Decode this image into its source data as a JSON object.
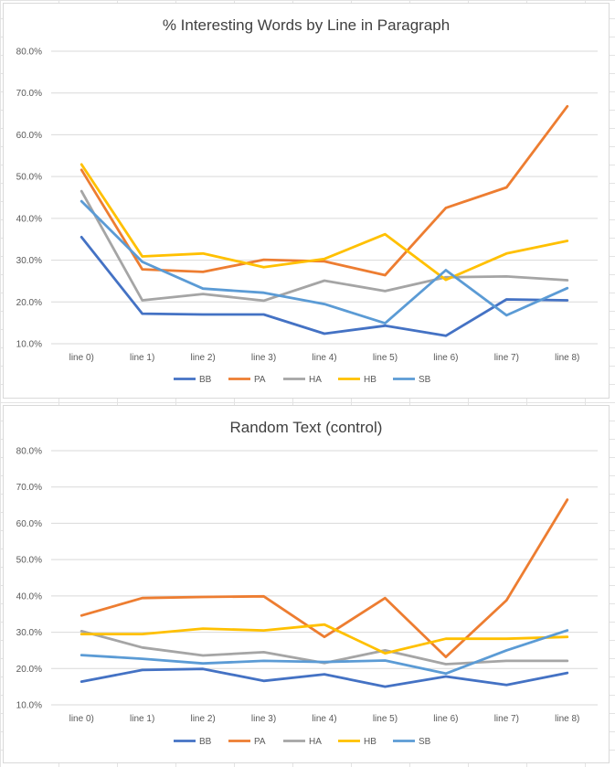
{
  "chart_data": [
    {
      "type": "line",
      "title": "% Interesting Words by Line in Paragraph",
      "xlabel": "",
      "ylabel": "",
      "ylim": [
        0.1,
        0.8
      ],
      "y_ticks": [
        "10.0%",
        "20.0%",
        "30.0%",
        "40.0%",
        "50.0%",
        "60.0%",
        "70.0%",
        "80.0%"
      ],
      "categories": [
        "line 0)",
        "line 1)",
        "line 2)",
        "line 3)",
        "line 4)",
        "line 5)",
        "line 6)",
        "line 7)",
        "line 8)"
      ],
      "grid": "horizontal",
      "legend_position": "bottom",
      "series": [
        {
          "name": "BB",
          "color": "#4472c4",
          "values": [
            0.355,
            0.172,
            0.17,
            0.17,
            0.124,
            0.143,
            0.119,
            0.206,
            0.204
          ]
        },
        {
          "name": "PA",
          "color": "#ed7d31",
          "values": [
            0.516,
            0.278,
            0.272,
            0.301,
            0.297,
            0.264,
            0.425,
            0.474,
            0.668
          ]
        },
        {
          "name": "HA",
          "color": "#a5a5a5",
          "values": [
            0.465,
            0.204,
            0.219,
            0.203,
            0.251,
            0.226,
            0.259,
            0.261,
            0.252
          ]
        },
        {
          "name": "HB",
          "color": "#ffc000",
          "values": [
            0.529,
            0.309,
            0.316,
            0.283,
            0.303,
            0.362,
            0.253,
            0.316,
            0.346
          ]
        },
        {
          "name": "SB",
          "color": "#5b9bd5",
          "values": [
            0.441,
            0.296,
            0.232,
            0.222,
            0.195,
            0.149,
            0.276,
            0.168,
            0.233
          ]
        }
      ]
    },
    {
      "type": "line",
      "title": "Random Text (control)",
      "xlabel": "",
      "ylabel": "",
      "ylim": [
        0.1,
        0.8
      ],
      "y_ticks": [
        "10.0%",
        "20.0%",
        "30.0%",
        "40.0%",
        "50.0%",
        "60.0%",
        "70.0%",
        "80.0%"
      ],
      "categories": [
        "line 0)",
        "line 1)",
        "line 2)",
        "line 3)",
        "line 4)",
        "line 5)",
        "line 6)",
        "line 7)",
        "line 8)"
      ],
      "grid": "horizontal",
      "legend_position": "bottom",
      "series": [
        {
          "name": "BB",
          "color": "#4472c4",
          "values": [
            0.164,
            0.196,
            0.199,
            0.166,
            0.184,
            0.15,
            0.178,
            0.155,
            0.188
          ]
        },
        {
          "name": "PA",
          "color": "#ed7d31",
          "values": [
            0.346,
            0.394,
            0.397,
            0.399,
            0.287,
            0.394,
            0.232,
            0.388,
            0.665
          ]
        },
        {
          "name": "HA",
          "color": "#a5a5a5",
          "values": [
            0.303,
            0.258,
            0.236,
            0.245,
            0.215,
            0.25,
            0.212,
            0.221,
            0.221
          ]
        },
        {
          "name": "HB",
          "color": "#ffc000",
          "values": [
            0.295,
            0.295,
            0.31,
            0.305,
            0.321,
            0.242,
            0.282,
            0.282,
            0.287
          ]
        },
        {
          "name": "SB",
          "color": "#5b9bd5",
          "values": [
            0.237,
            0.227,
            0.214,
            0.221,
            0.218,
            0.222,
            0.186,
            0.25,
            0.305
          ]
        }
      ]
    }
  ]
}
